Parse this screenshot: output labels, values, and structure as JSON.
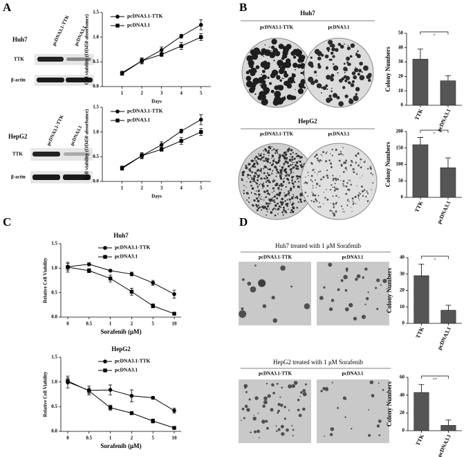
{
  "figure": {
    "panels": [
      "A",
      "B",
      "C",
      "D"
    ],
    "a": {
      "cell_lines": [
        "Huh7",
        "HepG2"
      ],
      "lanes": [
        "pcDNA3.1-TTK",
        "pcDNA3.1"
      ],
      "proteins": [
        "TTK",
        "β-actin"
      ]
    },
    "b": {
      "cell_lines": [
        "Huh7",
        "HepG2"
      ],
      "lanes": [
        "pcDNA3.1-TTK",
        "pcDNA3.1"
      ]
    },
    "d": {
      "titles": [
        "Huh7 treated with 1 μM Sorafenib",
        "HepG2 treated with 1 μM Sorafenib"
      ],
      "lanes": [
        "pcDNA3.1-TTK",
        "pcDNA3.1"
      ]
    }
  },
  "chart_data": [
    {
      "type": "line",
      "x": [
        1,
        2,
        3,
        4,
        5
      ],
      "xlim": [
        0,
        5.5
      ],
      "xticks": [
        1,
        2,
        3,
        4,
        5
      ],
      "xlabel": "Days",
      "ylabel": "Cell viability (OD450 absorbance)",
      "ylim": [
        0,
        1.5
      ],
      "yticks": [
        {
          "value": 0,
          "label": "0.0"
        },
        {
          "value": 0.5,
          "label": "0.5"
        },
        {
          "value": 1,
          "label": "1.0"
        },
        {
          "value": 1.5,
          "label": "1.5"
        }
      ],
      "legend": "upper left",
      "series": [
        {
          "name": "pcDNA3.1-TTK",
          "color": "#000000",
          "marker": "circle",
          "values": [
            0.28,
            0.52,
            0.74,
            1.02,
            1.25
          ],
          "errors": [
            0.03,
            0.05,
            0.06,
            0.04,
            0.1
          ]
        },
        {
          "name": "pcDNA3.1",
          "color": "#000000",
          "marker": "square",
          "values": [
            0.26,
            0.52,
            0.65,
            0.82,
            1.0
          ],
          "errors": [
            0.03,
            0.06,
            0.04,
            0.07,
            0.07
          ]
        }
      ]
    },
    {
      "type": "line",
      "x": [
        1,
        2,
        3,
        4,
        5
      ],
      "xlim": [
        0,
        5.5
      ],
      "xticks": [
        1,
        2,
        3,
        4,
        5
      ],
      "xlabel": "Days",
      "ylabel": "Cell viability (OD450 absorbance)",
      "ylim": [
        0,
        1.5
      ],
      "yticks": [
        {
          "value": 0,
          "label": "0.0"
        },
        {
          "value": 0.5,
          "label": "0.5"
        },
        {
          "value": 1,
          "label": "1.0"
        },
        {
          "value": 1.5,
          "label": "1.5"
        }
      ],
      "legend": "upper left",
      "series": [
        {
          "name": "pcDNA3.1-TTK",
          "color": "#000000",
          "marker": "circle",
          "values": [
            0.28,
            0.52,
            0.74,
            1.02,
            1.25
          ],
          "errors": [
            0.03,
            0.05,
            0.06,
            0.04,
            0.1
          ]
        },
        {
          "name": "pcDNA3.1",
          "color": "#000000",
          "marker": "square",
          "values": [
            0.26,
            0.52,
            0.65,
            0.82,
            1.0
          ],
          "errors": [
            0.03,
            0.06,
            0.04,
            0.07,
            0.07
          ]
        }
      ]
    },
    {
      "type": "bar",
      "categories": [
        "TTK",
        "pcDNA3.1"
      ],
      "values": [
        32,
        17
      ],
      "errors": [
        7,
        3.5
      ],
      "color": "#555555",
      "ylabel": "Colony Numbers",
      "ylim": [
        0,
        50
      ],
      "yticks": [
        0,
        10,
        20,
        30,
        40,
        50
      ],
      "annotation": "*"
    },
    {
      "type": "bar",
      "categories": [
        "TTK",
        "pcDNA3.1"
      ],
      "values": [
        160,
        90
      ],
      "errors": [
        22,
        30
      ],
      "color": "#555555",
      "ylabel": "Colony Numbers",
      "ylim": [
        0,
        200
      ],
      "yticks": [
        0,
        50,
        100,
        150,
        200
      ],
      "annotation": "*"
    },
    {
      "type": "line",
      "title": "Huh7",
      "categories": [
        "0",
        "0.5",
        "1",
        "2",
        "5",
        "10"
      ],
      "xlabel": "Sorafenib (μM)",
      "ylabel": "Relative Cell Viability",
      "ylim": [
        0,
        1.5
      ],
      "yticks": [
        {
          "value": 0,
          "label": "0.0"
        },
        {
          "value": 0.5,
          "label": "0.5"
        },
        {
          "value": 1,
          "label": "1.0"
        },
        {
          "value": 1.5,
          "label": "1.5"
        }
      ],
      "legend": "upper right",
      "series": [
        {
          "name": "pcDNA3.1-TTK",
          "color": "#000000",
          "marker": "circle",
          "values": [
            1.03,
            1.08,
            0.95,
            0.88,
            0.7,
            0.47
          ],
          "errors": [
            0.07,
            0.03,
            0.02,
            0.04,
            0.05,
            0.08
          ]
        },
        {
          "name": "pcDNA3.1",
          "color": "#000000",
          "marker": "square",
          "values": [
            1.02,
            0.95,
            0.79,
            0.52,
            0.23,
            0.07
          ],
          "errors": [
            0.1,
            0.04,
            0.07,
            0.07,
            0.04,
            0.02
          ]
        }
      ]
    },
    {
      "type": "line",
      "title": "HepG2",
      "categories": [
        "0",
        "0.5",
        "1",
        "2",
        "5",
        "10"
      ],
      "xlabel": "Sorafenib (μM)",
      "ylabel": "Relative Cell Viability",
      "ylim": [
        0,
        1.5
      ],
      "yticks": [
        {
          "value": 0,
          "label": "0.0"
        },
        {
          "value": 0.5,
          "label": "0.5"
        },
        {
          "value": 1,
          "label": "1.0"
        },
        {
          "value": 1.5,
          "label": "1.5"
        }
      ],
      "legend": "upper right",
      "series": [
        {
          "name": "pcDNA3.1-TTK",
          "color": "#000000",
          "marker": "circle",
          "values": [
            1.0,
            0.83,
            0.84,
            0.72,
            0.68,
            0.42
          ],
          "errors": [
            0.12,
            0.09,
            0.1,
            0.12,
            0.03,
            0.05
          ]
        },
        {
          "name": "pcDNA3.1",
          "color": "#000000",
          "marker": "square",
          "values": [
            1.02,
            0.82,
            0.48,
            0.37,
            0.21,
            0.07
          ],
          "errors": [
            0.06,
            0.06,
            0.05,
            0.02,
            0.04,
            0.02
          ]
        }
      ]
    },
    {
      "type": "bar",
      "categories": [
        "TTK",
        "pcDNA3.1"
      ],
      "values": [
        29,
        8
      ],
      "errors": [
        7,
        3
      ],
      "color": "#555555",
      "ylabel": "Colony Numbers",
      "ylim": [
        0,
        40
      ],
      "yticks": [
        0,
        10,
        20,
        30,
        40
      ],
      "annotation": "*"
    },
    {
      "type": "bar",
      "categories": [
        "TTK",
        "pcDNA3.1"
      ],
      "values": [
        43,
        6
      ],
      "errors": [
        9,
        6
      ],
      "color": "#555555",
      "ylabel": "Colony Numbers",
      "ylim": [
        0,
        60
      ],
      "yticks": [
        0,
        20,
        40,
        60
      ],
      "annotation": "**"
    }
  ]
}
